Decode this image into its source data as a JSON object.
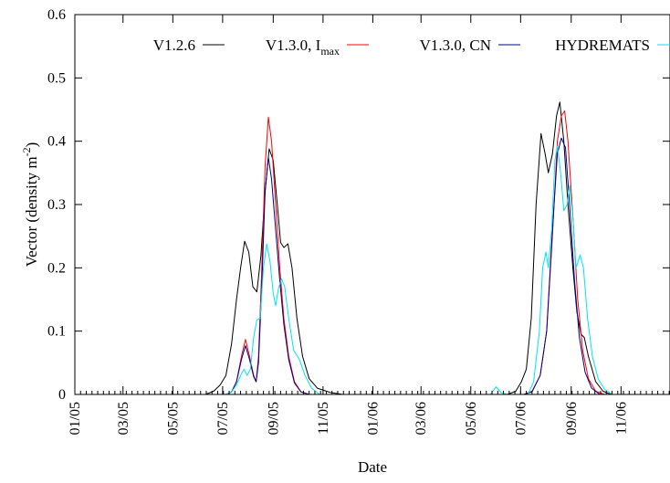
{
  "chart_data": {
    "type": "line",
    "xlabel": "Date",
    "ylabel": "Vector (density m",
    "ylabel_sup": "-2",
    "ylabel_tail": ")",
    "xlim": [
      "2005-01-01",
      "2006-12-31"
    ],
    "ylim": [
      0,
      0.6
    ],
    "y_ticks": [
      "0",
      "0.1",
      "0.2",
      "0.3",
      "0.4",
      "0.5",
      "0.6"
    ],
    "x_ticks": [
      {
        "date": "2005-01-01",
        "label": "01/05"
      },
      {
        "date": "2005-03-01",
        "label": "03/05"
      },
      {
        "date": "2005-05-01",
        "label": "05/05"
      },
      {
        "date": "2005-07-01",
        "label": "07/05"
      },
      {
        "date": "2005-09-01",
        "label": "09/05"
      },
      {
        "date": "2005-11-01",
        "label": "11/05"
      },
      {
        "date": "2006-01-01",
        "label": "01/06"
      },
      {
        "date": "2006-03-01",
        "label": "03/06"
      },
      {
        "date": "2006-05-01",
        "label": "05/06"
      },
      {
        "date": "2006-07-01",
        "label": "07/06"
      },
      {
        "date": "2006-09-01",
        "label": "09/06"
      },
      {
        "date": "2006-11-01",
        "label": "11/06"
      }
    ],
    "grid": false,
    "legend_position": "top",
    "series": [
      {
        "name": "V1.2.6",
        "color": "#000000",
        "points": [
          [
            "2005-01-01",
            0
          ],
          [
            "2005-06-10",
            0
          ],
          [
            "2005-06-20",
            0.005
          ],
          [
            "2005-06-28",
            0.015
          ],
          [
            "2005-07-05",
            0.03
          ],
          [
            "2005-07-12",
            0.08
          ],
          [
            "2005-07-18",
            0.15
          ],
          [
            "2005-07-23",
            0.2
          ],
          [
            "2005-07-28",
            0.242
          ],
          [
            "2005-08-02",
            0.225
          ],
          [
            "2005-08-07",
            0.17
          ],
          [
            "2005-08-12",
            0.162
          ],
          [
            "2005-08-17",
            0.22
          ],
          [
            "2005-08-22",
            0.32
          ],
          [
            "2005-08-27",
            0.388
          ],
          [
            "2005-09-01",
            0.37
          ],
          [
            "2005-09-06",
            0.3
          ],
          [
            "2005-09-10",
            0.24
          ],
          [
            "2005-09-14",
            0.232
          ],
          [
            "2005-09-19",
            0.238
          ],
          [
            "2005-09-24",
            0.2
          ],
          [
            "2005-09-30",
            0.12
          ],
          [
            "2005-10-07",
            0.06
          ],
          [
            "2005-10-15",
            0.025
          ],
          [
            "2005-10-25",
            0.01
          ],
          [
            "2005-11-10",
            0.003
          ],
          [
            "2005-11-25",
            0
          ],
          [
            "2006-06-15",
            0
          ],
          [
            "2006-06-25",
            0.005
          ],
          [
            "2006-07-02",
            0.02
          ],
          [
            "2006-07-08",
            0.04
          ],
          [
            "2006-07-14",
            0.12
          ],
          [
            "2006-07-20",
            0.3
          ],
          [
            "2006-07-26",
            0.412
          ],
          [
            "2006-07-31",
            0.38
          ],
          [
            "2006-08-04",
            0.35
          ],
          [
            "2006-08-09",
            0.38
          ],
          [
            "2006-08-14",
            0.44
          ],
          [
            "2006-08-18",
            0.462
          ],
          [
            "2006-08-23",
            0.4
          ],
          [
            "2006-08-28",
            0.3
          ],
          [
            "2006-09-03",
            0.2
          ],
          [
            "2006-09-08",
            0.13
          ],
          [
            "2006-09-13",
            0.095
          ],
          [
            "2006-09-17",
            0.09
          ],
          [
            "2006-09-22",
            0.06
          ],
          [
            "2006-10-01",
            0.02
          ],
          [
            "2006-10-10",
            0.005
          ],
          [
            "2006-10-20",
            0
          ],
          [
            "2006-12-31",
            0
          ]
        ]
      },
      {
        "name": "V1.3.0, I",
        "name_sub": "max",
        "color": "#ff0000",
        "points": [
          [
            "2005-01-01",
            0
          ],
          [
            "2005-07-05",
            0
          ],
          [
            "2005-07-12",
            0.004
          ],
          [
            "2005-07-18",
            0.02
          ],
          [
            "2005-07-24",
            0.06
          ],
          [
            "2005-07-29",
            0.087
          ],
          [
            "2005-08-03",
            0.06
          ],
          [
            "2005-08-08",
            0.03
          ],
          [
            "2005-08-11",
            0.02
          ],
          [
            "2005-08-14",
            0.06
          ],
          [
            "2005-08-18",
            0.2
          ],
          [
            "2005-08-22",
            0.36
          ],
          [
            "2005-08-26",
            0.438
          ],
          [
            "2005-08-30",
            0.4
          ],
          [
            "2005-09-04",
            0.3
          ],
          [
            "2005-09-09",
            0.2
          ],
          [
            "2005-09-14",
            0.12
          ],
          [
            "2005-09-20",
            0.06
          ],
          [
            "2005-09-27",
            0.02
          ],
          [
            "2005-10-05",
            0.004
          ],
          [
            "2005-10-15",
            0
          ],
          [
            "2006-07-05",
            0
          ],
          [
            "2006-07-15",
            0.005
          ],
          [
            "2006-07-25",
            0.03
          ],
          [
            "2006-08-02",
            0.1
          ],
          [
            "2006-08-09",
            0.25
          ],
          [
            "2006-08-15",
            0.4
          ],
          [
            "2006-08-20",
            0.44
          ],
          [
            "2006-08-24",
            0.448
          ],
          [
            "2006-08-28",
            0.4
          ],
          [
            "2006-09-03",
            0.28
          ],
          [
            "2006-09-09",
            0.15
          ],
          [
            "2006-09-15",
            0.07
          ],
          [
            "2006-09-22",
            0.025
          ],
          [
            "2006-10-01",
            0.005
          ],
          [
            "2006-10-12",
            0
          ],
          [
            "2006-12-31",
            0
          ]
        ]
      },
      {
        "name": "V1.3.0, CN",
        "color": "#00008b",
        "points": [
          [
            "2005-01-01",
            0
          ],
          [
            "2005-07-05",
            0
          ],
          [
            "2005-07-12",
            0.004
          ],
          [
            "2005-07-18",
            0.02
          ],
          [
            "2005-07-24",
            0.055
          ],
          [
            "2005-07-29",
            0.077
          ],
          [
            "2005-08-03",
            0.055
          ],
          [
            "2005-08-08",
            0.028
          ],
          [
            "2005-08-11",
            0.02
          ],
          [
            "2005-08-14",
            0.05
          ],
          [
            "2005-08-18",
            0.17
          ],
          [
            "2005-08-22",
            0.32
          ],
          [
            "2005-08-26",
            0.375
          ],
          [
            "2005-08-30",
            0.34
          ],
          [
            "2005-09-04",
            0.26
          ],
          [
            "2005-09-09",
            0.18
          ],
          [
            "2005-09-14",
            0.11
          ],
          [
            "2005-09-20",
            0.055
          ],
          [
            "2005-09-27",
            0.018
          ],
          [
            "2005-10-05",
            0.004
          ],
          [
            "2005-10-15",
            0
          ],
          [
            "2006-07-05",
            0
          ],
          [
            "2006-07-15",
            0.004
          ],
          [
            "2006-07-25",
            0.03
          ],
          [
            "2006-08-02",
            0.1
          ],
          [
            "2006-08-09",
            0.26
          ],
          [
            "2006-08-15",
            0.38
          ],
          [
            "2006-08-20",
            0.405
          ],
          [
            "2006-08-25",
            0.39
          ],
          [
            "2006-08-30",
            0.3
          ],
          [
            "2006-09-05",
            0.18
          ],
          [
            "2006-09-11",
            0.09
          ],
          [
            "2006-09-18",
            0.035
          ],
          [
            "2006-09-26",
            0.01
          ],
          [
            "2006-10-06",
            0
          ],
          [
            "2006-12-31",
            0
          ]
        ]
      },
      {
        "name": "HYDREMATS",
        "color": "#00e5ee",
        "points": [
          [
            "2005-01-01",
            0
          ],
          [
            "2005-07-05",
            0
          ],
          [
            "2005-07-12",
            0.004
          ],
          [
            "2005-07-18",
            0.015
          ],
          [
            "2005-07-23",
            0.03
          ],
          [
            "2005-07-27",
            0.04
          ],
          [
            "2005-07-31",
            0.03
          ],
          [
            "2005-08-04",
            0.04
          ],
          [
            "2005-08-08",
            0.09
          ],
          [
            "2005-08-12",
            0.118
          ],
          [
            "2005-08-16",
            0.12
          ],
          [
            "2005-08-20",
            0.2
          ],
          [
            "2005-08-24",
            0.238
          ],
          [
            "2005-08-28",
            0.21
          ],
          [
            "2005-09-01",
            0.16
          ],
          [
            "2005-09-04",
            0.14
          ],
          [
            "2005-09-07",
            0.165
          ],
          [
            "2005-09-11",
            0.183
          ],
          [
            "2005-09-15",
            0.17
          ],
          [
            "2005-09-20",
            0.12
          ],
          [
            "2005-09-26",
            0.07
          ],
          [
            "2005-10-03",
            0.055
          ],
          [
            "2005-10-10",
            0.03
          ],
          [
            "2005-10-18",
            0.01
          ],
          [
            "2005-10-28",
            0
          ],
          [
            "2006-05-25",
            0
          ],
          [
            "2006-06-01",
            0.012
          ],
          [
            "2006-06-07",
            0.003
          ],
          [
            "2006-06-15",
            0
          ],
          [
            "2006-07-10",
            0
          ],
          [
            "2006-07-17",
            0.02
          ],
          [
            "2006-07-24",
            0.1
          ],
          [
            "2006-07-28",
            0.2
          ],
          [
            "2006-08-01",
            0.225
          ],
          [
            "2006-08-04",
            0.2
          ],
          [
            "2006-08-08",
            0.26
          ],
          [
            "2006-08-12",
            0.37
          ],
          [
            "2006-08-15",
            0.392
          ],
          [
            "2006-08-19",
            0.35
          ],
          [
            "2006-08-23",
            0.29
          ],
          [
            "2006-08-27",
            0.3
          ],
          [
            "2006-08-30",
            0.33
          ],
          [
            "2006-09-03",
            0.28
          ],
          [
            "2006-09-07",
            0.2
          ],
          [
            "2006-09-12",
            0.22
          ],
          [
            "2006-09-16",
            0.2
          ],
          [
            "2006-09-21",
            0.12
          ],
          [
            "2006-09-27",
            0.06
          ],
          [
            "2006-10-04",
            0.025
          ],
          [
            "2006-10-12",
            0.008
          ],
          [
            "2006-10-22",
            0
          ],
          [
            "2006-12-31",
            0
          ]
        ]
      }
    ]
  }
}
